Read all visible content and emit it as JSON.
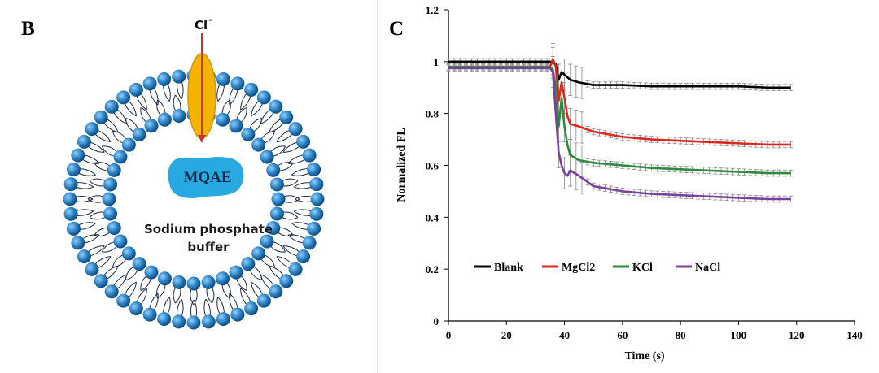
{
  "panel_b": {
    "letter": "B",
    "ion_label": "Cl",
    "ion_charge": "-",
    "dye_label": "MQAE",
    "buffer_line1": "Sodium phosphate",
    "buffer_line2": "buffer",
    "colors": {
      "lipid_head": "#2a7fc0",
      "lipid_tail": "#1f2a44",
      "channel": "#f4b400",
      "arrow": "#c0392b",
      "dye": "#29a9e1"
    }
  },
  "panel_c": {
    "letter": "C"
  },
  "chart_data": {
    "type": "line",
    "xlabel": "Time (s)",
    "ylabel": "Normalized FL",
    "xlim": [
      0,
      140
    ],
    "ylim": [
      0,
      1.2
    ],
    "xticks": [
      "0",
      "20",
      "40",
      "60",
      "80",
      "100",
      "120",
      "140"
    ],
    "yticks": [
      "0",
      "0.2",
      "0.4",
      "0.6",
      "0.8",
      "1",
      "1.2"
    ],
    "grid": false,
    "legend_position": "bottom-left inside plot",
    "series": [
      {
        "name": "Blank",
        "color": "#000000",
        "x": [
          0,
          10,
          20,
          30,
          35,
          37,
          38,
          39,
          40,
          42,
          45,
          50,
          60,
          70,
          80,
          90,
          100,
          110,
          118
        ],
        "y": [
          1.0,
          1.0,
          1.0,
          1.0,
          1.0,
          0.99,
          0.93,
          0.96,
          0.95,
          0.93,
          0.92,
          0.91,
          0.91,
          0.905,
          0.905,
          0.905,
          0.905,
          0.9,
          0.9
        ]
      },
      {
        "name": "MgCl2",
        "color": "#e0251b",
        "x": [
          0,
          10,
          20,
          30,
          35,
          36,
          37,
          38,
          39,
          40,
          41,
          42,
          45,
          50,
          60,
          70,
          80,
          90,
          100,
          110,
          118
        ],
        "y": [
          0.98,
          0.98,
          0.98,
          0.98,
          0.98,
          1.01,
          0.98,
          0.85,
          0.92,
          0.86,
          0.79,
          0.76,
          0.75,
          0.73,
          0.71,
          0.7,
          0.695,
          0.69,
          0.685,
          0.68,
          0.68
        ]
      },
      {
        "name": "KCl",
        "color": "#2e8b3e",
        "x": [
          0,
          10,
          20,
          30,
          35,
          36,
          37,
          38,
          39,
          40,
          41,
          42,
          45,
          50,
          60,
          70,
          80,
          90,
          100,
          110,
          118
        ],
        "y": [
          0.98,
          0.98,
          0.98,
          0.98,
          0.98,
          0.97,
          0.9,
          0.75,
          0.86,
          0.75,
          0.68,
          0.64,
          0.62,
          0.61,
          0.6,
          0.59,
          0.585,
          0.58,
          0.575,
          0.57,
          0.57
        ]
      },
      {
        "name": "NaCl",
        "color": "#7b3fa0",
        "x": [
          0,
          10,
          20,
          30,
          35,
          36,
          37,
          38,
          39,
          40,
          41,
          42,
          45,
          50,
          60,
          70,
          80,
          90,
          100,
          110,
          118
        ],
        "y": [
          0.975,
          0.975,
          0.975,
          0.975,
          0.975,
          0.96,
          0.8,
          0.65,
          0.6,
          0.57,
          0.56,
          0.58,
          0.56,
          0.52,
          0.5,
          0.49,
          0.485,
          0.48,
          0.475,
          0.47,
          0.47
        ]
      }
    ]
  }
}
